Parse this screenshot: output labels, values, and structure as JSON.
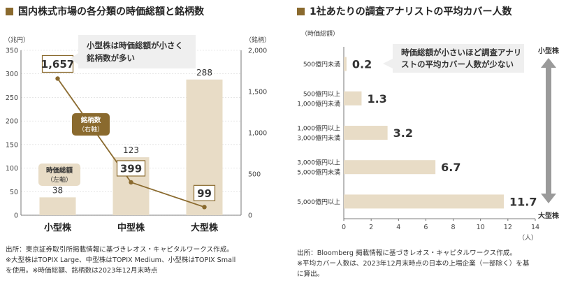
{
  "left": {
    "title": "国内株式市場の各分類の時価総額と銘柄数",
    "chart_data": {
      "type": "bar+line",
      "categories": [
        "小型株",
        "中型株",
        "大型株"
      ],
      "series": [
        {
          "name": "時価総額（左軸）",
          "kind": "bar",
          "axis": "left",
          "values": [
            38,
            123,
            288
          ],
          "labels": [
            "38",
            "123",
            "288"
          ]
        },
        {
          "name": "銘柄数（右軸）",
          "kind": "line",
          "axis": "right",
          "values": [
            1657,
            399,
            99
          ],
          "labels": [
            "1,657",
            "399",
            "99"
          ]
        }
      ],
      "left_axis": {
        "unit": "（兆円）",
        "range": [
          0,
          350
        ],
        "ticks": [
          0,
          50,
          100,
          150,
          200,
          250,
          300,
          350
        ]
      },
      "right_axis": {
        "unit": "（銘柄）",
        "range": [
          0,
          2000
        ],
        "ticks": [
          0,
          500,
          1000,
          1500,
          2000
        ],
        "tick_labels": [
          "0",
          "500",
          "1,000",
          "1,500",
          "2,000"
        ]
      },
      "bar_legend": [
        "時価総額",
        "（左軸）"
      ],
      "line_legend": [
        "銘柄数",
        "（右軸）"
      ],
      "callout": [
        "小型株は時価総額が小さく",
        "銘柄数が多い"
      ]
    },
    "source": [
      "出所：東京証券取引所掲載情報に基づきレオス・キャピタルワークス作成。",
      "※大型株はTOPIX Large、中型株はTOPIX Medium、小型株はTOPIX Small",
      "を使用。※時価総額、銘柄数は2023年12月末時点"
    ]
  },
  "right": {
    "title": "1社あたりの調査アナリストの平均カバー人数",
    "chart_data": {
      "type": "bar",
      "orientation": "horizontal",
      "categories": [
        [
          "500億円未満"
        ],
        [
          "500億円以上",
          "1,000億円未満"
        ],
        [
          "1,000億円以上",
          "3,000億円未満"
        ],
        [
          "3,000億円以上",
          "5,000億円未満"
        ],
        [
          "5,000億円以上"
        ]
      ],
      "values": [
        0.2,
        1.3,
        3.2,
        6.7,
        11.7
      ],
      "value_labels": [
        "0.2",
        "1.3",
        "3.2",
        "6.7",
        "11.7"
      ],
      "x_range": [
        0,
        14
      ],
      "x_ticks": [
        0,
        2,
        4,
        6,
        8,
        10,
        12,
        14
      ],
      "x_unit": "（人）",
      "y_title": "（時価総額）",
      "arrow_top": "小型株",
      "arrow_bottom": "大型株",
      "callout": [
        "時価総額が小さいほど調査アナリ",
        "ストの平均カバー人数が少ない"
      ]
    },
    "source": [
      "出所：Bloomberg 掲載情報に基づきレオス・キャピタルワークス作成。",
      "※平均カバー人数は、2023年12月末時点の日本の上場企業（一部除く）を基",
      "に算出。"
    ]
  },
  "colors": {
    "bar": "#e8dcc6",
    "line": "#8a6a2e",
    "callout_bg": "#efefef",
    "axis": "#555555",
    "arrow": "#9a9a9a"
  }
}
